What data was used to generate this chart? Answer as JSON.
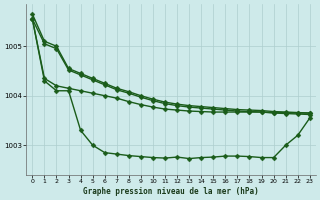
{
  "background_color": "#ceeaea",
  "grid_color": "#aecece",
  "line_color": "#1a5c1a",
  "xlabel": "Graphe pression niveau de la mer (hPa)",
  "ylim": [
    1002.4,
    1005.85
  ],
  "xlim": [
    -0.5,
    23.5
  ],
  "yticks": [
    1003,
    1004,
    1005
  ],
  "xticks": [
    0,
    1,
    2,
    3,
    4,
    5,
    6,
    7,
    8,
    9,
    10,
    11,
    12,
    13,
    14,
    15,
    16,
    17,
    18,
    19,
    20,
    21,
    22,
    23
  ],
  "line1_x": [
    0,
    1,
    2,
    3,
    4,
    5,
    6,
    7,
    8,
    9,
    10,
    11,
    12,
    13,
    14,
    15,
    16,
    17,
    18,
    19,
    20,
    21,
    22,
    23
  ],
  "line1_y": [
    1005.65,
    1005.1,
    1005.0,
    1004.55,
    1004.45,
    1004.35,
    1004.25,
    1004.15,
    1004.08,
    1004.0,
    1003.93,
    1003.87,
    1003.83,
    1003.8,
    1003.78,
    1003.76,
    1003.74,
    1003.72,
    1003.71,
    1003.7,
    1003.68,
    1003.67,
    1003.66,
    1003.65
  ],
  "line2_x": [
    0,
    1,
    2,
    3,
    4,
    5,
    6,
    7,
    8,
    9,
    10,
    11,
    12,
    13,
    14,
    15,
    16,
    17,
    18,
    19,
    20,
    21,
    22,
    23
  ],
  "line2_y": [
    1005.55,
    1005.05,
    1004.95,
    1004.52,
    1004.42,
    1004.32,
    1004.22,
    1004.12,
    1004.05,
    1003.97,
    1003.9,
    1003.84,
    1003.8,
    1003.77,
    1003.75,
    1003.73,
    1003.71,
    1003.69,
    1003.68,
    1003.67,
    1003.65,
    1003.64,
    1003.63,
    1003.62
  ],
  "line3_x": [
    0,
    1,
    2,
    3,
    4,
    5,
    6,
    7,
    8,
    9,
    10,
    11,
    12,
    13,
    14,
    15,
    16,
    17,
    18,
    19,
    20,
    21,
    22,
    23
  ],
  "line3_y": [
    1005.55,
    1004.35,
    1004.2,
    1004.15,
    1004.1,
    1004.05,
    1004.0,
    1003.95,
    1003.88,
    1003.82,
    1003.77,
    1003.73,
    1003.71,
    1003.69,
    1003.68,
    1003.67,
    1003.67,
    1003.67,
    1003.67,
    1003.67,
    1003.66,
    1003.66,
    1003.65,
    1003.65
  ],
  "line4_x": [
    0,
    1,
    2,
    3,
    4,
    5,
    6,
    7,
    8,
    9,
    10,
    11,
    12,
    13,
    14,
    15,
    16,
    17,
    18,
    19,
    20,
    21,
    22,
    23
  ],
  "line4_y": [
    1005.55,
    1004.3,
    1004.1,
    1004.1,
    1003.3,
    1003.0,
    1002.85,
    1002.82,
    1002.79,
    1002.77,
    1002.75,
    1002.74,
    1002.76,
    1002.73,
    1002.75,
    1002.76,
    1002.78,
    1002.78,
    1002.77,
    1002.75,
    1002.75,
    1003.0,
    1003.2,
    1003.55
  ],
  "markersize": 2.5,
  "linewidth": 1.0
}
